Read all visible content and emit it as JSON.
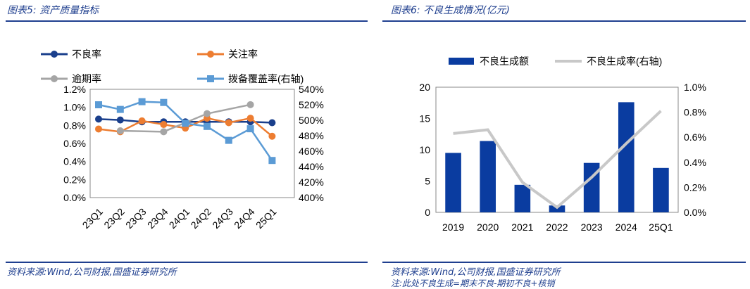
{
  "left_panel": {
    "title": "图表5:  资产质量指标",
    "source": "资料来源:Wind,公司财报,国盛证券研究所"
  },
  "right_panel": {
    "title": "图表6:  不良生成情况(亿元)",
    "source": "资料来源:Wind,公司财报,国盛证券研究所",
    "note": "注:此处不良生成=期末不良-期初不良+核销"
  },
  "colors": {
    "npl": "#1a3f8c",
    "special": "#ed7d31",
    "overdue": "#a5a5a5",
    "coverage": "#5b9bd5",
    "bar": "#0a3ca0",
    "line_gray": "#c8c8c8",
    "accent": "#1f3f8f"
  },
  "chart_data": [
    {
      "type": "line",
      "title": "资产质量指标",
      "categories": [
        "23Q1",
        "23Q2",
        "23Q3",
        "23Q4",
        "24Q1",
        "24Q2",
        "24Q3",
        "24Q4",
        "25Q1"
      ],
      "series": [
        {
          "name": "不良率",
          "axis": "left",
          "values": [
            0.87,
            0.86,
            0.84,
            0.84,
            0.84,
            0.84,
            0.84,
            0.84,
            0.83
          ]
        },
        {
          "name": "关注率",
          "axis": "left",
          "values": [
            0.76,
            0.73,
            0.85,
            0.81,
            0.77,
            0.88,
            0.83,
            0.88,
            0.68
          ]
        },
        {
          "name": "逾期率",
          "axis": "left",
          "values": [
            null,
            0.74,
            null,
            0.73,
            null,
            0.93,
            null,
            1.03,
            null
          ]
        },
        {
          "name": "拨备覆盖率(右轴)",
          "axis": "right",
          "values": [
            520,
            514,
            524,
            523,
            496,
            492,
            474,
            489,
            448
          ]
        }
      ],
      "left_axis": {
        "min": 0,
        "max": 1.2,
        "ticks": [
          "0.0%",
          "0.2%",
          "0.4%",
          "0.6%",
          "0.8%",
          "1.0%",
          "1.2%"
        ]
      },
      "right_axis": {
        "min": 400,
        "max": 540,
        "ticks": [
          "400%",
          "420%",
          "440%",
          "460%",
          "480%",
          "500%",
          "520%",
          "540%"
        ]
      }
    },
    {
      "type": "bar",
      "title": "不良生成情况(亿元)",
      "categories": [
        "2019",
        "2020",
        "2021",
        "2022",
        "2023",
        "2024",
        "25Q1"
      ],
      "series": [
        {
          "name": "不良生成额",
          "axis": "left",
          "type": "bar",
          "values": [
            9.5,
            11.4,
            4.4,
            1.1,
            7.9,
            17.6,
            7.1
          ]
        },
        {
          "name": "不良生成率(右轴)",
          "axis": "right",
          "type": "line",
          "values": [
            0.63,
            0.66,
            0.24,
            0.04,
            0.28,
            0.55,
            0.81
          ]
        }
      ],
      "left_axis": {
        "min": 0,
        "max": 20,
        "ticks": [
          "0",
          "5",
          "10",
          "15",
          "20"
        ]
      },
      "right_axis": {
        "min": 0,
        "max": 1.0,
        "ticks": [
          "0.0%",
          "0.2%",
          "0.4%",
          "0.6%",
          "0.8%",
          "1.0%"
        ]
      }
    }
  ]
}
